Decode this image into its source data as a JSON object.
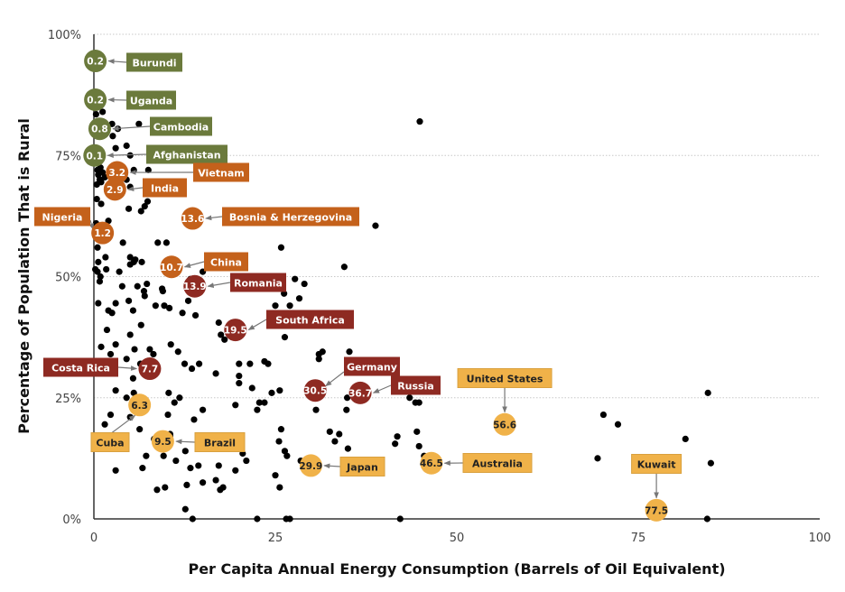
{
  "chart_data": {
    "type": "scatter",
    "title": "",
    "xlabel": "Per Capita Annual Energy Consumption (Barrels of Oil Equivalent)",
    "ylabel": "Percentage of Population That is Rural",
    "xlim": [
      0,
      100
    ],
    "ylim": [
      0,
      100
    ],
    "x_ticks": [
      0,
      25,
      50,
      75,
      100
    ],
    "x_tick_labels": [
      "0",
      "25",
      "50",
      "75",
      "100"
    ],
    "y_ticks": [
      0,
      25,
      50,
      75,
      100
    ],
    "y_tick_labels": [
      "0%",
      "25%",
      "50%",
      "75%",
      "100%"
    ],
    "grid": "horizontal dotted",
    "legend": "none",
    "categories_colors": {
      "green": "#6b7a3c",
      "orange": "#c4611b",
      "red": "#8e2a22",
      "yellow": "#f0b249"
    },
    "highlighted": [
      {
        "name": "Burundi",
        "x": 0.2,
        "y": 94.5,
        "value_label": "0.2",
        "color": "green"
      },
      {
        "name": "Uganda",
        "x": 0.2,
        "y": 86.5,
        "value_label": "0.2",
        "color": "green"
      },
      {
        "name": "Cambodia",
        "x": 0.8,
        "y": 80.5,
        "value_label": "0.8",
        "color": "green"
      },
      {
        "name": "Afghanistan",
        "x": 0.1,
        "y": 75.0,
        "value_label": "0.1",
        "color": "green"
      },
      {
        "name": "Vietnam",
        "x": 3.2,
        "y": 71.5,
        "value_label": "3.2",
        "color": "orange"
      },
      {
        "name": "India",
        "x": 2.9,
        "y": 68.0,
        "value_label": "2.9",
        "color": "orange"
      },
      {
        "name": "Bosnia & Herzegovina",
        "x": 13.6,
        "y": 62.0,
        "value_label": "13.6",
        "color": "orange"
      },
      {
        "name": "Nigeria",
        "x": 1.2,
        "y": 59.0,
        "value_label": "1.2",
        "color": "orange"
      },
      {
        "name": "China",
        "x": 10.7,
        "y": 52.0,
        "value_label": "10.7",
        "color": "orange"
      },
      {
        "name": "Romania",
        "x": 13.9,
        "y": 48.0,
        "value_label": "13.9",
        "color": "red"
      },
      {
        "name": "South Africa",
        "x": 19.5,
        "y": 39.0,
        "value_label": "19.5",
        "color": "red"
      },
      {
        "name": "Costa Rica",
        "x": 7.7,
        "y": 31.0,
        "value_label": "7.7",
        "color": "red"
      },
      {
        "name": "Germany",
        "x": 30.5,
        "y": 26.5,
        "value_label": "30.5",
        "color": "red"
      },
      {
        "name": "Russia",
        "x": 36.7,
        "y": 26.0,
        "value_label": "36.7",
        "color": "red"
      },
      {
        "name": "Cuba",
        "x": 6.3,
        "y": 23.5,
        "value_label": "6.3",
        "color": "yellow"
      },
      {
        "name": "United States",
        "x": 56.6,
        "y": 19.5,
        "value_label": "56.6",
        "color": "yellow"
      },
      {
        "name": "Brazil",
        "x": 9.5,
        "y": 16.0,
        "value_label": "9.5",
        "color": "yellow"
      },
      {
        "name": "Australia",
        "x": 46.5,
        "y": 11.5,
        "value_label": "46.5",
        "color": "yellow"
      },
      {
        "name": "Japan",
        "x": 29.9,
        "y": 11.0,
        "value_label": "29.9",
        "color": "yellow"
      },
      {
        "name": "Kuwait",
        "x": 77.5,
        "y": 1.8,
        "value_label": "77.5",
        "color": "yellow"
      }
    ],
    "points_note": "Approximate reconstruction of the unlabeled background dots. Only some regions were inspected at zoom and positions are estimated, so these are not an exact dot-for-dot copy of the figure.",
    "points": [
      [
        0.3,
        83.5
      ],
      [
        0.5,
        81
      ],
      [
        1.2,
        84
      ],
      [
        2.5,
        81.5
      ],
      [
        3.3,
        80.5
      ],
      [
        2.6,
        79
      ],
      [
        6.2,
        81.5
      ],
      [
        3.0,
        76.5
      ],
      [
        4.5,
        77
      ],
      [
        5.0,
        75
      ],
      [
        0.5,
        72
      ],
      [
        0.6,
        71
      ],
      [
        0.8,
        70
      ],
      [
        1.0,
        69.5
      ],
      [
        1.2,
        71.5
      ],
      [
        0.4,
        69
      ],
      [
        0.9,
        72.5
      ],
      [
        1.5,
        70.5
      ],
      [
        5.5,
        72
      ],
      [
        7.5,
        72
      ],
      [
        4.5,
        70
      ],
      [
        5.0,
        68.5
      ],
      [
        0.4,
        66
      ],
      [
        1.0,
        65
      ],
      [
        4.8,
        64
      ],
      [
        3.0,
        67
      ],
      [
        7.4,
        65.5
      ],
      [
        6.5,
        63.5
      ],
      [
        7.0,
        64.5
      ],
      [
        2.0,
        61.5
      ],
      [
        0.3,
        61
      ],
      [
        0.5,
        56
      ],
      [
        0.8,
        58
      ],
      [
        4.0,
        57
      ],
      [
        8.8,
        57
      ],
      [
        10.0,
        57
      ],
      [
        5.0,
        54
      ],
      [
        0.6,
        53
      ],
      [
        1.6,
        54
      ],
      [
        0.2,
        51.5
      ],
      [
        0.9,
        50
      ],
      [
        0.5,
        51
      ],
      [
        1.7,
        51.5
      ],
      [
        3.5,
        51
      ],
      [
        5.0,
        52.5
      ],
      [
        5.5,
        53
      ],
      [
        5.7,
        53.5
      ],
      [
        6.6,
        53
      ],
      [
        0.8,
        49
      ],
      [
        7.3,
        48.5
      ],
      [
        3.9,
        48
      ],
      [
        6.0,
        48
      ],
      [
        6.9,
        47
      ],
      [
        4.8,
        45
      ],
      [
        7.0,
        46
      ],
      [
        9.5,
        47
      ],
      [
        8.5,
        44
      ],
      [
        9.7,
        44
      ],
      [
        0.6,
        44.5
      ],
      [
        2.0,
        43
      ],
      [
        2.5,
        42.5
      ],
      [
        3.0,
        44.5
      ],
      [
        5.4,
        43
      ],
      [
        12.2,
        42.5
      ],
      [
        13.0,
        45
      ],
      [
        15.0,
        51
      ],
      [
        16.5,
        53
      ],
      [
        10.4,
        43.5
      ],
      [
        14.0,
        42
      ],
      [
        13.3,
        49.5
      ],
      [
        9.4,
        47.5
      ],
      [
        1.8,
        39
      ],
      [
        5.0,
        38
      ],
      [
        6.5,
        40
      ],
      [
        7.7,
        35
      ],
      [
        8.2,
        34
      ],
      [
        10.6,
        36
      ],
      [
        11.6,
        34.5
      ],
      [
        12.5,
        32
      ],
      [
        13.5,
        31
      ],
      [
        14.5,
        32
      ],
      [
        16.8,
        30
      ],
      [
        20.0,
        32
      ],
      [
        21.5,
        32
      ],
      [
        23.5,
        32.5
      ],
      [
        24.0,
        32
      ],
      [
        20.0,
        29.5
      ],
      [
        21.8,
        27
      ],
      [
        22.8,
        24
      ],
      [
        24.5,
        26
      ],
      [
        20.0,
        28
      ],
      [
        17.2,
        40.5
      ],
      [
        17.5,
        38
      ],
      [
        18.0,
        37
      ],
      [
        26.3,
        37.5
      ],
      [
        25.0,
        44
      ],
      [
        26.2,
        46.5
      ],
      [
        27.7,
        49.5
      ],
      [
        27.0,
        44
      ],
      [
        28.3,
        45.5
      ],
      [
        25.8,
        56
      ],
      [
        29.0,
        48.5
      ],
      [
        34.5,
        52
      ],
      [
        38.8,
        60.5
      ],
      [
        44.9,
        82
      ],
      [
        31.0,
        34
      ],
      [
        31.5,
        34.5
      ],
      [
        31.0,
        33
      ],
      [
        35.2,
        34.5
      ],
      [
        1.0,
        35.5
      ],
      [
        2.3,
        34
      ],
      [
        3.0,
        36
      ],
      [
        5.6,
        35
      ],
      [
        4.5,
        33
      ],
      [
        6.4,
        32
      ],
      [
        5.4,
        29
      ],
      [
        3.0,
        26.5
      ],
      [
        5.5,
        26
      ],
      [
        4.5,
        25
      ],
      [
        2.3,
        21.5
      ],
      [
        5.0,
        21
      ],
      [
        10.3,
        26
      ],
      [
        10.2,
        21.5
      ],
      [
        11.1,
        24
      ],
      [
        11.8,
        25
      ],
      [
        13.8,
        20.5
      ],
      [
        15.0,
        22.5
      ],
      [
        19.5,
        23.5
      ],
      [
        22.5,
        22.5
      ],
      [
        23.5,
        24
      ],
      [
        25.6,
        26.5
      ],
      [
        30.6,
        22.5
      ],
      [
        34.8,
        22.5
      ],
      [
        34.9,
        25
      ],
      [
        43.5,
        25
      ],
      [
        44.3,
        24
      ],
      [
        1.5,
        19.5
      ],
      [
        6.3,
        18.5
      ],
      [
        8.3,
        16.5
      ],
      [
        10.5,
        17
      ],
      [
        9.6,
        14.5
      ],
      [
        9.6,
        13
      ],
      [
        10.5,
        17.5
      ],
      [
        7.2,
        13
      ],
      [
        11.3,
        12
      ],
      [
        12.6,
        14
      ],
      [
        13.3,
        10.5
      ],
      [
        14.4,
        11
      ],
      [
        17.2,
        11
      ],
      [
        20.5,
        13.5
      ],
      [
        21.0,
        12
      ],
      [
        16.8,
        8
      ],
      [
        19.5,
        10
      ],
      [
        25.8,
        18.5
      ],
      [
        25.5,
        16
      ],
      [
        26.3,
        14
      ],
      [
        26.6,
        13
      ],
      [
        25.0,
        9
      ],
      [
        28.5,
        12
      ],
      [
        32.5,
        18
      ],
      [
        33.8,
        17.5
      ],
      [
        33.2,
        16
      ],
      [
        35.0,
        14.5
      ],
      [
        41.5,
        15.5
      ],
      [
        41.8,
        17
      ],
      [
        44.5,
        18
      ],
      [
        44.8,
        15
      ],
      [
        44.8,
        24
      ],
      [
        45.5,
        13
      ],
      [
        2.2,
        14.5
      ],
      [
        3.0,
        10
      ],
      [
        6.7,
        10.5
      ],
      [
        8.7,
        6
      ],
      [
        9.8,
        6.5
      ],
      [
        12.8,
        7
      ],
      [
        15.0,
        7.5
      ],
      [
        17.4,
        6
      ],
      [
        17.8,
        6.5
      ],
      [
        25.6,
        6.5
      ],
      [
        12.6,
        2
      ],
      [
        13.6,
        0
      ],
      [
        22.5,
        0
      ],
      [
        26.5,
        0
      ],
      [
        27.0,
        0
      ],
      [
        42.2,
        0
      ],
      [
        84.5,
        0
      ],
      [
        84.6,
        26
      ],
      [
        70.2,
        21.5
      ],
      [
        72.2,
        19.5
      ],
      [
        81.5,
        16.5
      ],
      [
        69.4,
        12.5
      ],
      [
        85.0,
        11.5
      ]
    ]
  }
}
